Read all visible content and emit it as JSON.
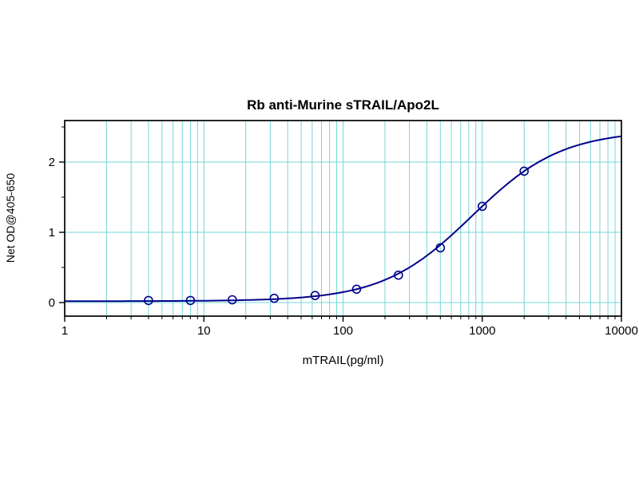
{
  "chart_data": {
    "type": "scatter",
    "title": "Rb anti-Murine sTRAIL/Apo2L",
    "xlabel": "mTRAIL(pg/ml)",
    "ylabel": "Net OD@405-650",
    "x_scale": "log",
    "x_range": [
      1,
      10000
    ],
    "y_range": [
      -0.19,
      2.59
    ],
    "x_ticks": [
      1,
      10,
      100,
      1000,
      10000
    ],
    "y_ticks": [
      0,
      1,
      2
    ],
    "grid": "on",
    "legend_position": "none",
    "points": {
      "x": [
        4,
        8,
        16,
        32,
        63,
        125,
        250,
        500,
        1000,
        2000
      ],
      "y": [
        0.03,
        0.03,
        0.04,
        0.06,
        0.1,
        0.19,
        0.39,
        0.78,
        1.37,
        1.87
      ]
    },
    "fit_4pl": {
      "bottom": 0.02,
      "top": 2.45,
      "ec50": 847,
      "hill": 1.35
    },
    "colors": {
      "line": "#00008b",
      "marker": "#00008b",
      "grid": "#76d6d6",
      "axis": "#000000",
      "background": "#ffffff"
    }
  }
}
